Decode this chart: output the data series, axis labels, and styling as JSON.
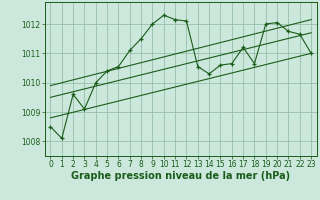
{
  "background_color": "#cce8dc",
  "grid_color": "#8ab8a0",
  "line_color": "#1a5c1a",
  "marker_color": "#1a5c1a",
  "xlabel": "Graphe pression niveau de la mer (hPa)",
  "xlabel_fontsize": 7,
  "ylim": [
    1007.5,
    1012.75
  ],
  "xlim": [
    -0.5,
    23.5
  ],
  "yticks": [
    1008,
    1009,
    1010,
    1011,
    1012
  ],
  "xticks": [
    0,
    1,
    2,
    3,
    4,
    5,
    6,
    7,
    8,
    9,
    10,
    11,
    12,
    13,
    14,
    15,
    16,
    17,
    18,
    19,
    20,
    21,
    22,
    23
  ],
  "series_main": {
    "x": [
      0,
      1,
      2,
      3,
      4,
      5,
      6,
      7,
      8,
      9,
      10,
      11,
      12,
      13,
      14,
      15,
      16,
      17,
      18,
      19,
      20,
      21,
      22,
      23
    ],
    "y": [
      1008.5,
      1008.1,
      1009.6,
      1009.1,
      1010.0,
      1010.4,
      1010.55,
      1011.1,
      1011.5,
      1012.0,
      1012.3,
      1012.15,
      1012.1,
      1010.55,
      1010.3,
      1010.6,
      1010.65,
      1011.2,
      1010.65,
      1012.0,
      1012.05,
      1011.75,
      1011.65,
      1011.0
    ]
  },
  "series_lines": [
    {
      "x": [
        0,
        23
      ],
      "y": [
        1008.8,
        1011.0
      ]
    },
    {
      "x": [
        0,
        23
      ],
      "y": [
        1009.5,
        1011.7
      ]
    },
    {
      "x": [
        0,
        23
      ],
      "y": [
        1009.9,
        1012.15
      ]
    }
  ]
}
